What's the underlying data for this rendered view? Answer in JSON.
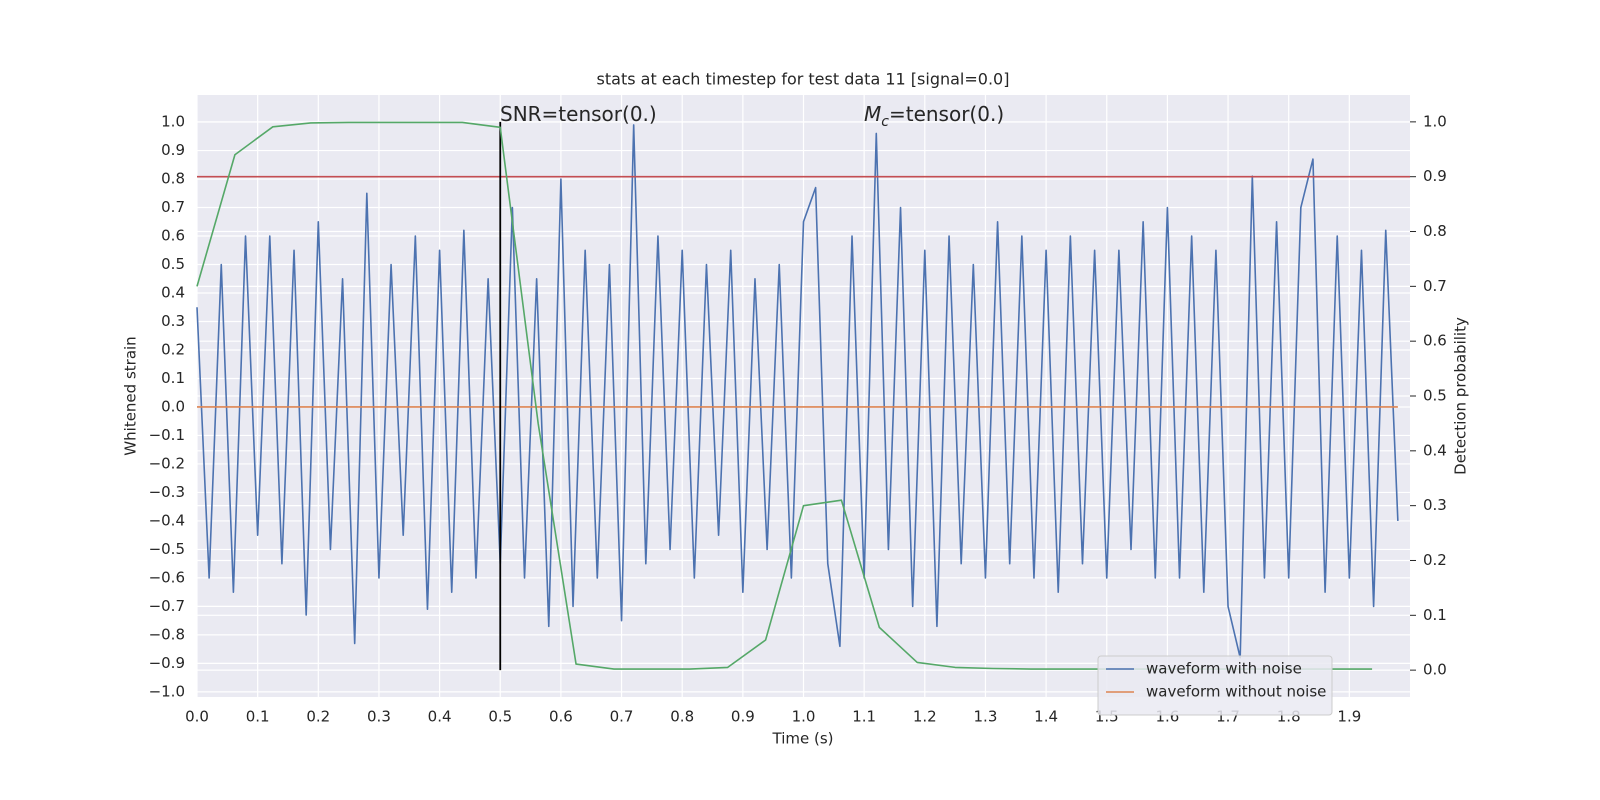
{
  "chart_data": {
    "type": "line",
    "title": "stats at each timestep for test data 11 [signal=0.0]",
    "xlabel": "Time (s)",
    "ylabel": "Whitened strain",
    "y2label": "Detection probability",
    "xlim": [
      0,
      2.0
    ],
    "ylim": [
      -1.018,
      1.095
    ],
    "y2lim": [
      -0.049,
      1.049
    ],
    "xticks": [
      {
        "value": 0.0,
        "label": "0.0"
      },
      0.1,
      0.2,
      0.3,
      0.4,
      0.5,
      0.6,
      0.7,
      0.8,
      0.9,
      {
        "value": 1.0,
        "label": "1.0"
      },
      1.1,
      1.2,
      1.3,
      1.4,
      1.5,
      1.6,
      1.7,
      1.8,
      1.9
    ],
    "yticks": [
      {
        "value": -1.0,
        "label": "−1.0"
      },
      {
        "value": -0.9,
        "label": "−0.9"
      },
      {
        "value": -0.8,
        "label": "−0.8"
      },
      {
        "value": -0.7,
        "label": "−0.7"
      },
      {
        "value": -0.6,
        "label": "−0.6"
      },
      {
        "value": -0.5,
        "label": "−0.5"
      },
      {
        "value": -0.4,
        "label": "−0.4"
      },
      {
        "value": -0.3,
        "label": "−0.3"
      },
      {
        "value": -0.2,
        "label": "−0.2"
      },
      {
        "value": -0.1,
        "label": "−0.1"
      },
      {
        "value": 0.0,
        "label": "0.0"
      },
      0.1,
      0.2,
      0.3,
      0.4,
      0.5,
      0.6,
      0.7,
      0.8,
      0.9,
      {
        "value": 1.0,
        "label": "1.0"
      }
    ],
    "y2ticks": [
      {
        "value": 0.0,
        "label": "0.0"
      },
      0.1,
      0.2,
      0.3,
      0.4,
      0.5,
      0.6,
      0.7,
      0.8,
      0.9,
      {
        "value": 1.0,
        "label": "1.0"
      }
    ],
    "grid": true,
    "legend": "lower right",
    "series": [
      {
        "name": "waveform with noise",
        "color": "#4c72b0",
        "x": [
          0.0,
          0.02,
          0.04,
          0.06,
          0.08,
          0.1,
          0.12,
          0.14,
          0.16,
          0.18,
          0.2,
          0.22,
          0.24,
          0.26,
          0.28,
          0.3,
          0.32,
          0.34,
          0.36,
          0.38,
          0.4,
          0.42,
          0.44,
          0.46,
          0.48,
          0.5,
          0.52,
          0.54,
          0.56,
          0.58,
          0.6,
          0.62,
          0.64,
          0.66,
          0.68,
          0.7,
          0.72,
          0.74,
          0.76,
          0.78,
          0.8,
          0.82,
          0.84,
          0.86,
          0.88,
          0.9,
          0.92,
          0.94,
          0.96,
          0.98,
          1.0,
          1.02,
          1.04,
          1.06,
          1.08,
          1.1,
          1.12,
          1.14,
          1.16,
          1.18,
          1.2,
          1.22,
          1.24,
          1.26,
          1.28,
          1.3,
          1.32,
          1.34,
          1.36,
          1.38,
          1.4,
          1.42,
          1.44,
          1.46,
          1.48,
          1.5,
          1.52,
          1.54,
          1.56,
          1.58,
          1.6,
          1.62,
          1.64,
          1.66,
          1.68,
          1.7,
          1.72,
          1.74,
          1.76,
          1.78,
          1.8,
          1.82,
          1.84,
          1.86,
          1.88,
          1.9,
          1.92,
          1.94,
          1.96,
          1.98
        ],
        "values": [
          0.35,
          -0.6,
          0.5,
          -0.65,
          0.6,
          -0.45,
          0.6,
          -0.55,
          0.55,
          -0.73,
          0.65,
          -0.5,
          0.45,
          -0.83,
          0.75,
          -0.6,
          0.5,
          -0.45,
          0.6,
          -0.71,
          0.55,
          -0.65,
          0.62,
          -0.6,
          0.45,
          -0.55,
          0.7,
          -0.6,
          0.45,
          -0.77,
          0.8,
          -0.7,
          0.55,
          -0.6,
          0.5,
          -0.75,
          0.99,
          -0.55,
          0.6,
          -0.5,
          0.55,
          -0.6,
          0.5,
          -0.45,
          0.55,
          -0.65,
          0.45,
          -0.5,
          0.5,
          -0.6,
          0.65,
          0.77,
          -0.55,
          -0.84,
          0.6,
          -0.6,
          0.96,
          -0.5,
          0.7,
          -0.7,
          0.55,
          -0.77,
          0.6,
          -0.55,
          0.5,
          -0.6,
          0.65,
          -0.55,
          0.6,
          -0.6,
          0.55,
          -0.65,
          0.6,
          -0.55,
          0.55,
          -0.6,
          0.55,
          -0.5,
          0.65,
          -0.6,
          0.7,
          -0.6,
          0.6,
          -0.65,
          0.55,
          -0.7,
          -0.88,
          0.81,
          -0.6,
          0.65,
          -0.6,
          0.7,
          0.87,
          -0.65,
          0.6,
          -0.6,
          0.55,
          -0.7,
          0.62,
          -0.4
        ]
      },
      {
        "name": "waveform without noise",
        "color": "#dd8452",
        "x": [
          0.0,
          1.98
        ],
        "values": [
          0.0,
          0.0
        ]
      },
      {
        "color": "#55a868",
        "axis": "y2",
        "x": [
          0,
          0.0625,
          0.125,
          0.1875,
          0.25,
          0.3125,
          0.375,
          0.4375,
          0.5,
          0.5625,
          0.625,
          0.6875,
          0.75,
          0.8125,
          0.875,
          0.9375,
          1.0,
          1.0625,
          1.125,
          1.1875,
          1.25,
          1.3125,
          1.375,
          1.4375,
          1.5,
          1.5625,
          1.625,
          1.6875,
          1.75,
          1.8125,
          1.875,
          1.9375
        ],
        "values": [
          0.7,
          0.94,
          0.991,
          0.998,
          0.999,
          0.999,
          0.999,
          0.999,
          0.99,
          0.45,
          0.011,
          0.002,
          0.002,
          0.002,
          0.005,
          0.055,
          0.3,
          0.31,
          0.078,
          0.014,
          0.005,
          0.003,
          0.002,
          0.002,
          0.002,
          0.002,
          0.002,
          0.002,
          0.002,
          0.002,
          0.002,
          0.002
        ]
      }
    ],
    "hlines": [
      {
        "y": 0.9,
        "axis": "y2",
        "color": "#c44e52"
      }
    ],
    "vlines": [
      {
        "x": 0.5,
        "ymin": 0.0,
        "ymax": 1.0,
        "axis": "y2",
        "color": "#000000"
      }
    ],
    "annotations": [
      "SNR=tensor(0.)",
      {
        "text": "M",
        "sub": "c",
        "rest": "=tensor(0.)"
      }
    ]
  }
}
